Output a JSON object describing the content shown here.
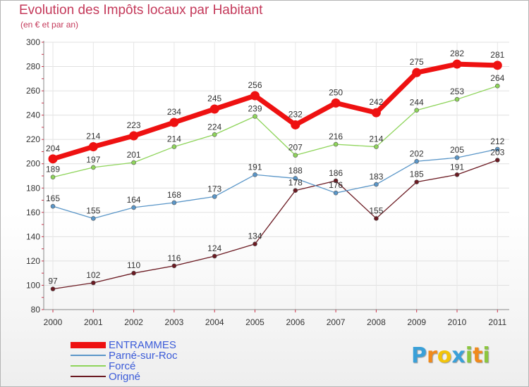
{
  "chart_data": {
    "type": "line",
    "title": "Evolution des Impôts locaux par Habitant",
    "subtitle": "(en € et par an)",
    "x": [
      "2000",
      "2001",
      "2002",
      "2003",
      "2004",
      "2005",
      "2006",
      "2007",
      "2008",
      "2009",
      "2010",
      "2011"
    ],
    "ylim": [
      80,
      300
    ],
    "yticks": [
      80,
      100,
      120,
      140,
      160,
      180,
      200,
      220,
      240,
      260,
      280,
      300
    ],
    "grid": true,
    "legend_position": "bottom-left",
    "series": [
      {
        "name": "ENTRAMMES",
        "color": "#ee1111",
        "values": [
          204,
          214,
          223,
          234,
          245,
          256,
          232,
          250,
          242,
          275,
          282,
          281
        ]
      },
      {
        "name": "Parné-sur-Roc",
        "color": "#5a96c8",
        "values": [
          165,
          155,
          164,
          168,
          173,
          191,
          188,
          176,
          183,
          202,
          205,
          212
        ]
      },
      {
        "name": "Forcé",
        "color": "#8ed45a",
        "values": [
          189,
          197,
          201,
          214,
          224,
          239,
          207,
          216,
          214,
          244,
          253,
          264
        ]
      },
      {
        "name": "Origné",
        "color": "#6b1a22",
        "values": [
          97,
          102,
          110,
          116,
          124,
          134,
          178,
          186,
          155,
          185,
          191,
          203
        ]
      }
    ]
  },
  "brand": {
    "letters": [
      "P",
      "r",
      "o",
      "x",
      "i",
      "t",
      "i"
    ],
    "colors": [
      "#3aa0d8",
      "#f08a1c",
      "#f2c40a",
      "#3aa0d8",
      "#8cc63f",
      "#f08a1c",
      "#8cc63f"
    ]
  }
}
